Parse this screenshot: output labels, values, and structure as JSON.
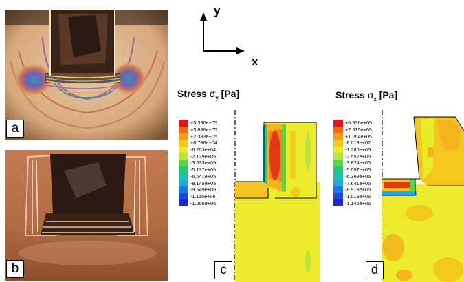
{
  "axes": {
    "y_label": "y",
    "x_label": "x"
  },
  "panels": {
    "a": "a",
    "b": "b",
    "c": "c",
    "d": "d"
  },
  "stress_y": {
    "title_main": "Stress",
    "symbol": "σ",
    "subscript": "y",
    "unit": " [Pa]",
    "legend_values": [
      "+5.390e+05",
      "+3.886e+05",
      "+2.383e+05",
      "+8.786e+04",
      "-6.253e+04",
      "-2.129e+05",
      "-3.633e+05",
      "-5.137e+05",
      "-6.641e+05",
      "-8.145e+05",
      "-9.649e+05",
      "-1.115e+06",
      "-1.266e+06"
    ]
  },
  "stress_x": {
    "title_main": "Stress",
    "symbol": "σ",
    "subscript": "x",
    "unit": " [Pa]",
    "legend_values": [
      "+6.536e+05",
      "+2.535e+05",
      "+1.264e+05",
      "-8.018e+02",
      "-1.280e+05",
      "-2.552e+05",
      "-3.824e+05",
      "-5.097e+05",
      "-6.369e+05",
      "-7.641e+05",
      "-8.913e+05",
      "-1.019e+06",
      "-1.146e+06"
    ]
  },
  "legend_colors": [
    "#e0141b",
    "#f06a12",
    "#f39c1a",
    "#f4c71c",
    "#e8ec28",
    "#b7e33a",
    "#5fd24c",
    "#23c779",
    "#1ec0b6",
    "#1ea8e6",
    "#1f76e8",
    "#2146e0",
    "#2327c9"
  ]
}
